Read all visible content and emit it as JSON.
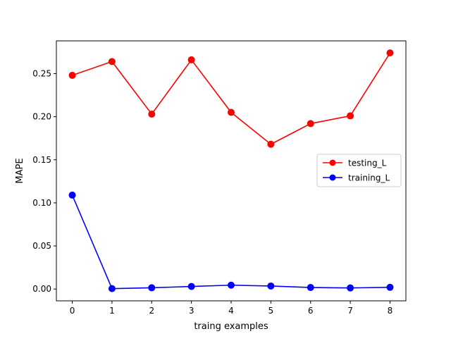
{
  "chart_data": {
    "type": "line",
    "title": "",
    "xlabel": "traing examples",
    "ylabel": "MAPE",
    "x": [
      0,
      1,
      2,
      3,
      4,
      5,
      6,
      7,
      8
    ],
    "xticks": [
      "0",
      "1",
      "2",
      "3",
      "4",
      "5",
      "6",
      "7",
      "8"
    ],
    "yticks": [
      "0.00",
      "0.05",
      "0.10",
      "0.15",
      "0.20",
      "0.25"
    ],
    "xlim": [
      -0.4,
      8.4
    ],
    "ylim": [
      -0.0137,
      0.288
    ],
    "grid": false,
    "legend_position": "center-right",
    "series": [
      {
        "name": "testing_L",
        "color": "#ff0000",
        "marker": "circle",
        "values": [
          0.248,
          0.264,
          0.203,
          0.266,
          0.205,
          0.168,
          0.192,
          0.201,
          0.274
        ]
      },
      {
        "name": "training_L",
        "color": "#0000ff",
        "marker": "circle",
        "values": [
          0.109,
          0.0005,
          0.0015,
          0.003,
          0.0045,
          0.0035,
          0.0018,
          0.0013,
          0.002
        ]
      }
    ]
  }
}
